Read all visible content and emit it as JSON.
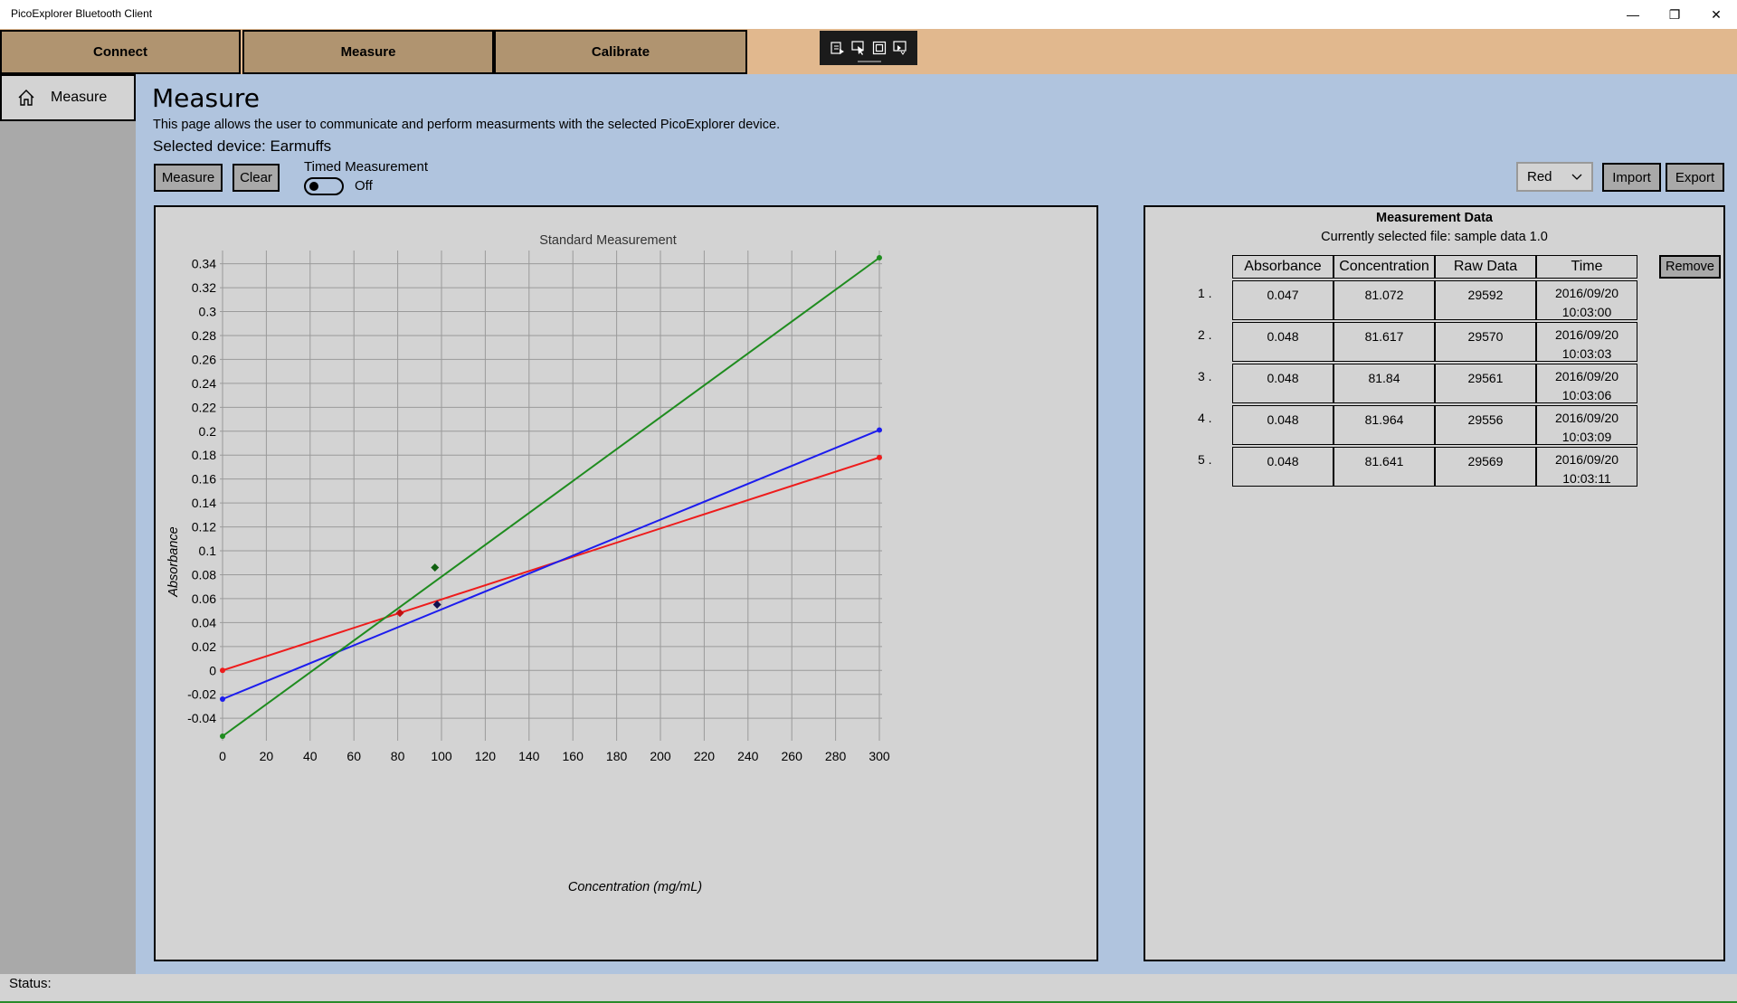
{
  "window": {
    "title": "PicoExplorer Bluetooth Client",
    "minimize": "—",
    "maximize": "❐",
    "close": "✕"
  },
  "tabs": [
    {
      "label": "Connect"
    },
    {
      "label": "Measure"
    },
    {
      "label": "Calibrate"
    }
  ],
  "sidebar": {
    "items": [
      {
        "label": "Measure",
        "icon": "home-icon"
      }
    ]
  },
  "main": {
    "title": "Measure",
    "description": "This page allows the user to communicate and perform measurments with the selected PicoExplorer device.",
    "selected_device": "Selected device: Earmuffs",
    "measure_button": "Measure",
    "clear_button": "Clear",
    "timed_measurement_label": "Timed Measurement",
    "timed_measurement_state": "Off",
    "color_select_value": "Red",
    "import_button": "Import",
    "export_button": "Export"
  },
  "chart_data": {
    "type": "line",
    "title": "Standard Measurement",
    "xlabel": "Concentration (mg/mL)",
    "ylabel": "Absorbance",
    "xlim": [
      0,
      300
    ],
    "ylim": [
      -0.055,
      0.345
    ],
    "x_ticks": [
      0,
      20,
      40,
      60,
      80,
      100,
      120,
      140,
      160,
      180,
      200,
      220,
      240,
      260,
      280,
      300
    ],
    "y_ticks": [
      -0.04,
      -0.02,
      0,
      0.02,
      0.04,
      0.06,
      0.08,
      0.1,
      0.12,
      0.14,
      0.16,
      0.18,
      0.2,
      0.22,
      0.24,
      0.26,
      0.28,
      0.3,
      0.32,
      0.34
    ],
    "grid": true,
    "series": [
      {
        "color": "#ee1c1c",
        "x": [
          0,
          300
        ],
        "y": [
          0,
          0.178
        ]
      },
      {
        "color": "#1c1cee",
        "x": [
          0,
          300
        ],
        "y": [
          -0.024,
          0.201
        ]
      },
      {
        "color": "#1f8c1f",
        "x": [
          0,
          300
        ],
        "y": [
          -0.055,
          0.345
        ]
      }
    ],
    "points": [
      {
        "color": "#c01010",
        "x": 81,
        "y": 0.048
      },
      {
        "color": "#101050",
        "x": 98,
        "y": 0.055
      },
      {
        "color": "#106010",
        "x": 97,
        "y": 0.086
      }
    ]
  },
  "data_panel": {
    "title": "Measurement Data",
    "subtitle": "Currently selected file: sample data 1.0",
    "remove_button": "Remove",
    "headers": [
      "Absorbance",
      "Concentration",
      "Raw Data",
      "Time"
    ],
    "rows": [
      {
        "num": "1 .",
        "absorbance": "0.047",
        "concentration": "81.072",
        "raw": "29592",
        "date": "2016/09/20",
        "time": "10:03:00"
      },
      {
        "num": "2 .",
        "absorbance": "0.048",
        "concentration": "81.617",
        "raw": "29570",
        "date": "2016/09/20",
        "time": "10:03:03"
      },
      {
        "num": "3 .",
        "absorbance": "0.048",
        "concentration": "81.84",
        "raw": "29561",
        "date": "2016/09/20",
        "time": "10:03:06"
      },
      {
        "num": "4 .",
        "absorbance": "0.048",
        "concentration": "81.964",
        "raw": "29556",
        "date": "2016/09/20",
        "time": "10:03:09"
      },
      {
        "num": "5 .",
        "absorbance": "0.048",
        "concentration": "81.641",
        "raw": "29569",
        "date": "2016/09/20",
        "time": "10:03:11"
      }
    ]
  },
  "status": {
    "label": "Status:"
  }
}
